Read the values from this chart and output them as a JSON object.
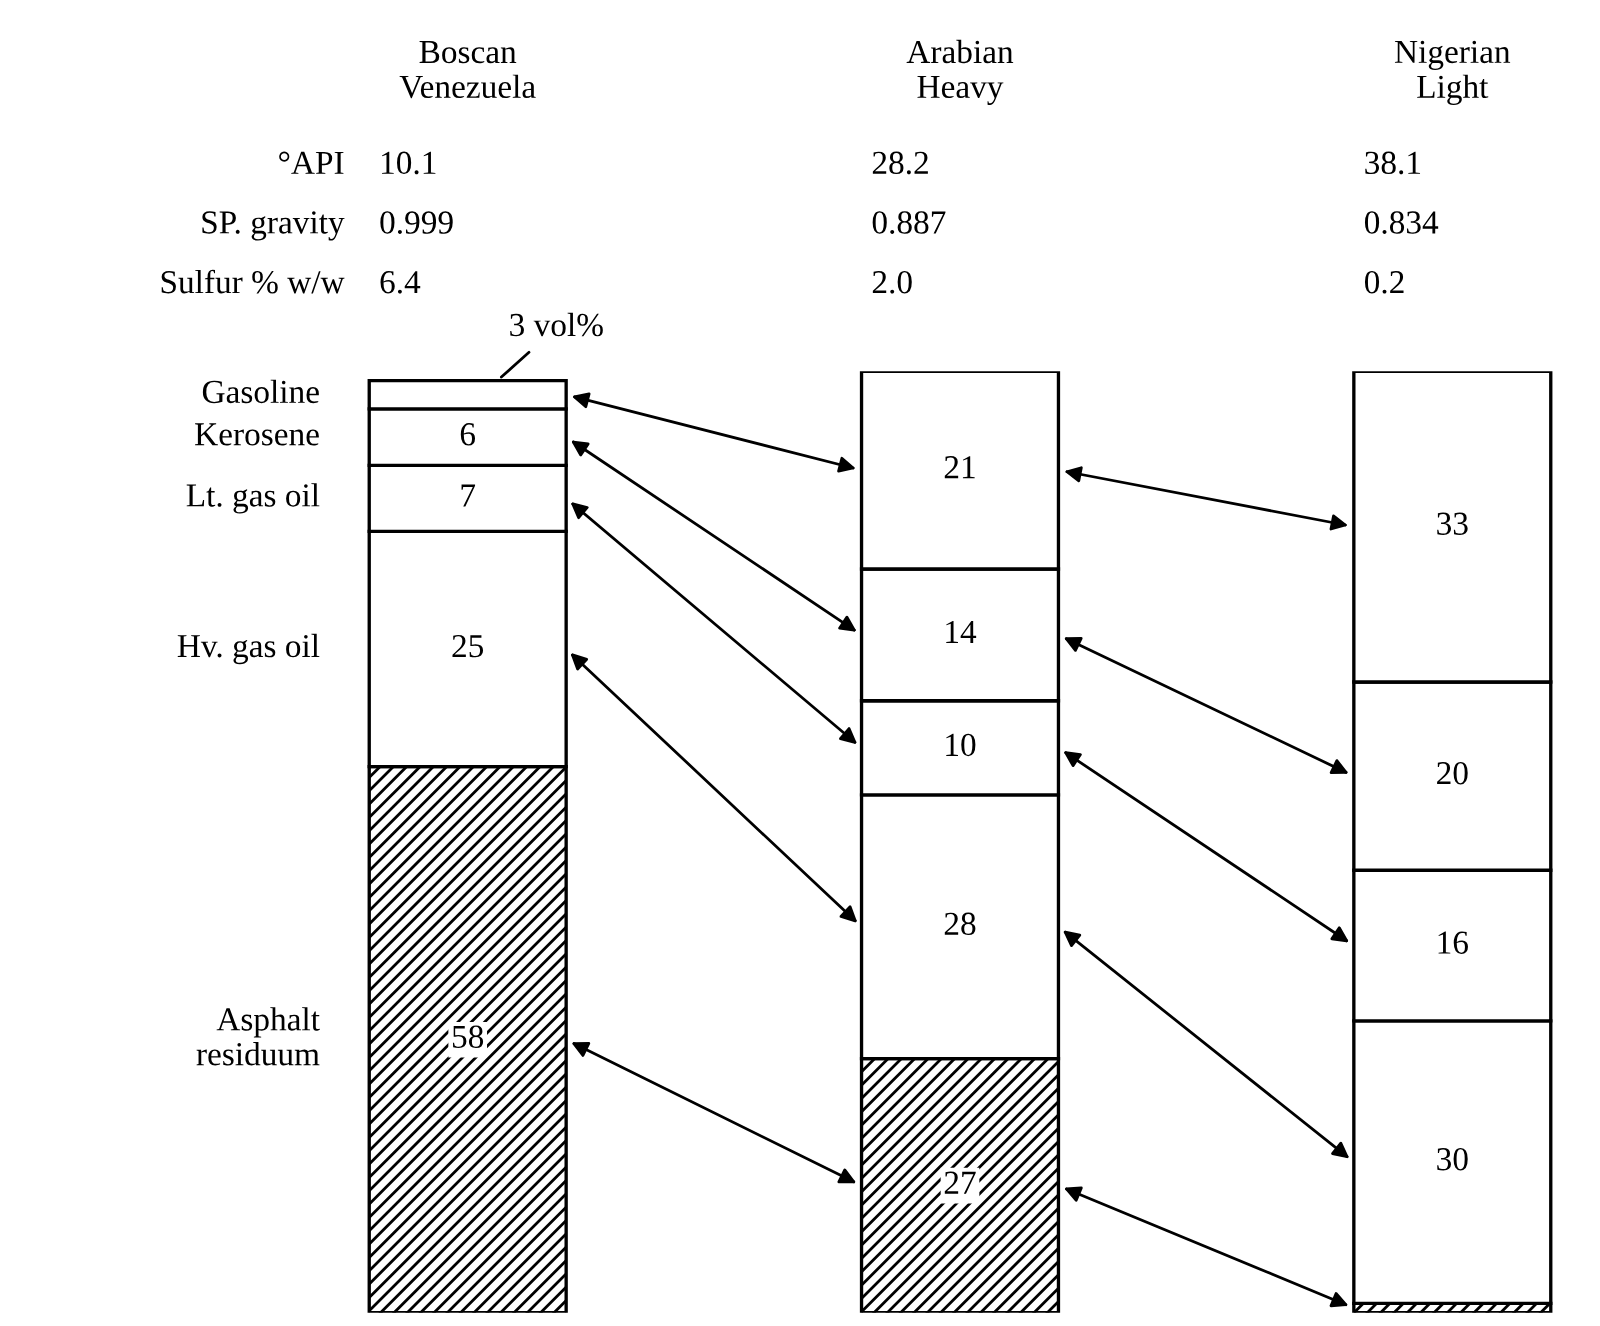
{
  "chart_data": {
    "type": "bar",
    "stacked": true,
    "categories": [
      "Boscan\nVenezuela",
      "Arabian\nHeavy",
      "Nigerian\nLight"
    ],
    "series": [
      {
        "name": "Asphalt\nresiduum",
        "color": "#000000",
        "values": [
          58,
          27,
          1
        ],
        "value_labels": [
          "58",
          "27",
          null
        ]
      },
      {
        "name": "Hv. gas oil",
        "color": "#ffffff",
        "values": [
          25,
          28,
          30
        ],
        "value_labels": [
          "25",
          "28",
          "30"
        ]
      },
      {
        "name": "Lt. gas oil",
        "color": "#ffffff",
        "values": [
          7,
          10,
          16
        ],
        "value_labels": [
          "7",
          "10",
          "16"
        ]
      },
      {
        "name": "Kerosene",
        "color": "#ffffff",
        "values": [
          6,
          14,
          20
        ],
        "value_labels": [
          "6",
          "14",
          "20"
        ]
      },
      {
        "name": "Gasoline",
        "color": "#ffffff",
        "values": [
          3,
          21,
          33
        ],
        "value_labels": [
          "3 vol%",
          "21",
          "33"
        ]
      }
    ],
    "annotations": [
      "°API",
      "10.1",
      "28.2",
      "38.1",
      "SP. gravity",
      "0.999",
      "0.887",
      "0.834",
      "Sulfur % w/w",
      "6.4",
      "2.0",
      "0.2"
    ],
    "legend": false
  }
}
